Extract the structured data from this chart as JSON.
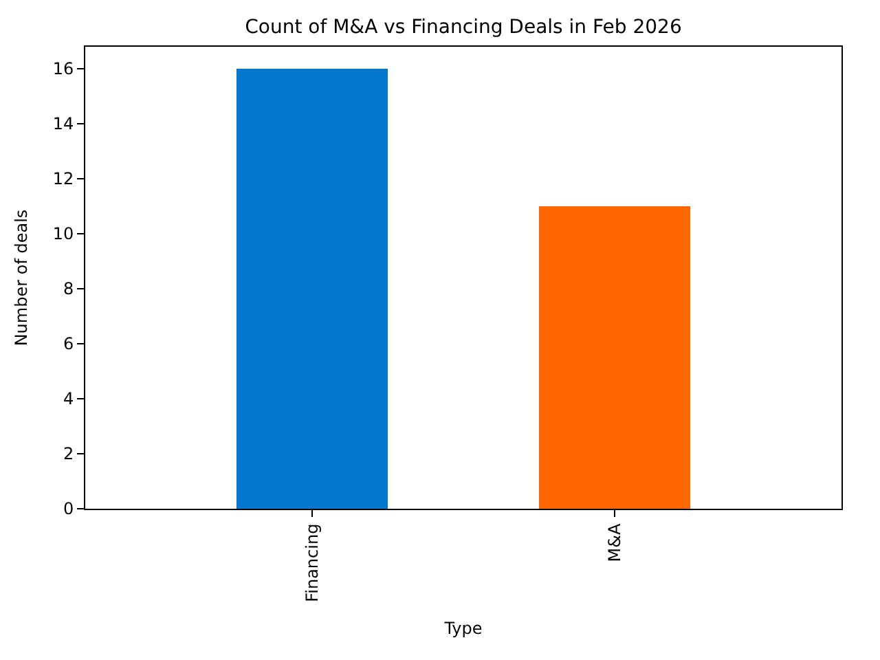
{
  "chart_data": {
    "type": "bar",
    "title": "Count of M&A vs Financing Deals in Feb 2026",
    "xlabel": "Type",
    "ylabel": "Number of deals",
    "categories": [
      "Financing",
      "M&A"
    ],
    "values": [
      16,
      11
    ],
    "colors": [
      "#0077cc",
      "#ff6600"
    ],
    "ylim": [
      0,
      16.8
    ],
    "yticks": [
      0,
      2,
      4,
      6,
      8,
      10,
      12,
      14,
      16
    ],
    "legend": false
  }
}
